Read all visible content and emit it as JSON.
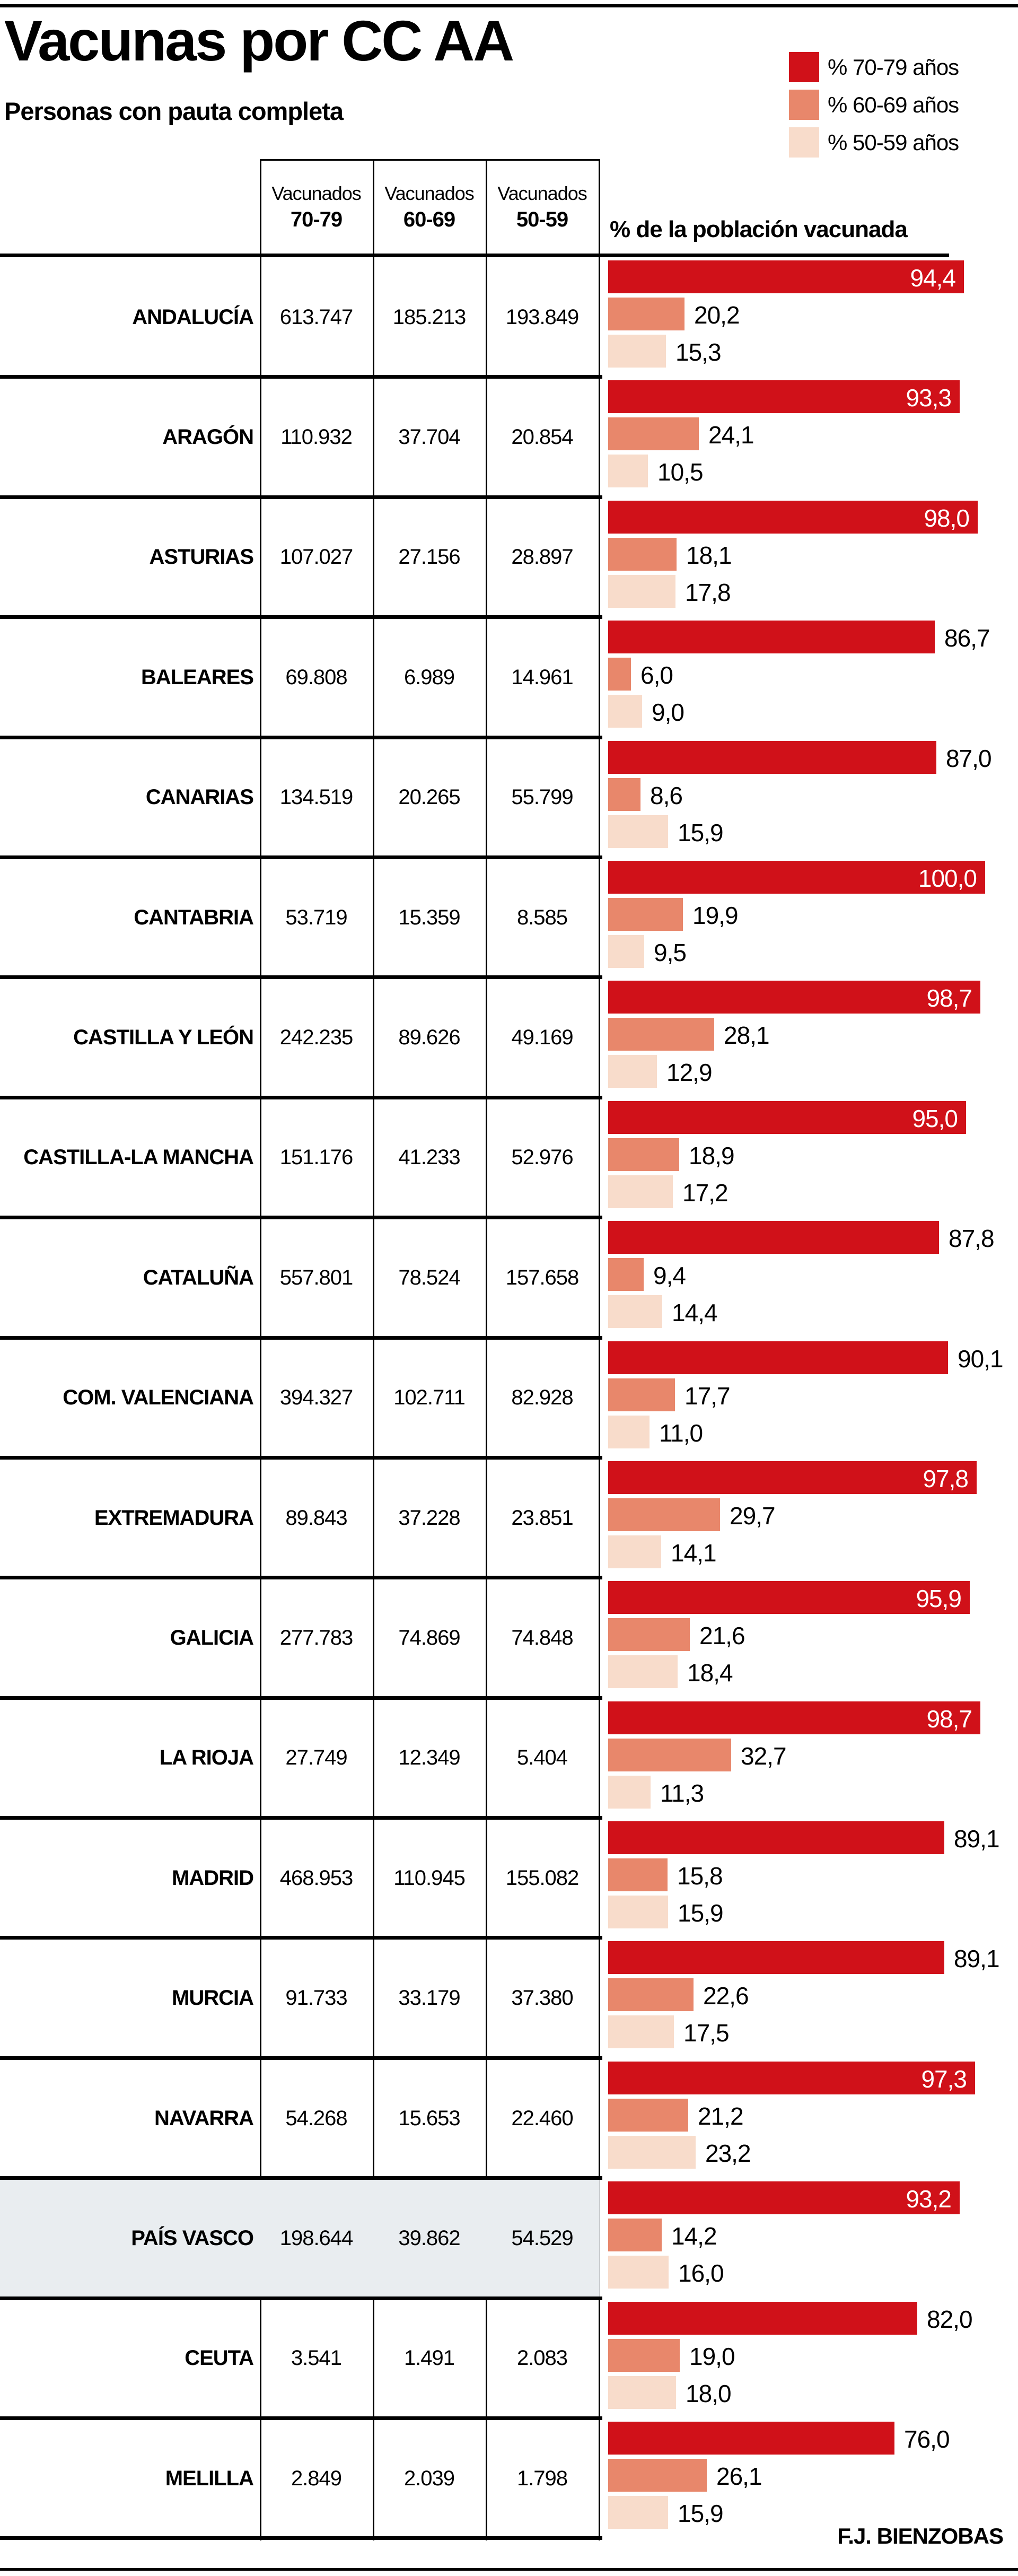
{
  "title": "Vacunas por CC AA",
  "subtitle": "Personas con pauta completa",
  "credit": "F.J. BIENZOBAS",
  "legend": [
    {
      "label": "% 70-79 años",
      "color": "#d01119"
    },
    {
      "label": "% 60-69 años",
      "color": "#e8876b"
    },
    {
      "label": "% 50-59 años",
      "color": "#f8dccb"
    }
  ],
  "table": {
    "col_headers": [
      {
        "line1": "Vacunados",
        "line2": "70-79"
      },
      {
        "line1": "Vacunados",
        "line2": "60-69"
      },
      {
        "line1": "Vacunados",
        "line2": "50-59"
      }
    ],
    "bars_header": "% de la población vacunada"
  },
  "highlight_row_color": "#e9edf0",
  "chart_data": {
    "type": "bar",
    "orientation": "horizontal",
    "title": "Vacunas por CC AA",
    "subtitle": "Personas con pauta completa",
    "unit": "% de la población vacunada",
    "xlim": [
      0,
      100
    ],
    "grid": false,
    "legend_position": "top-right",
    "series_names": [
      "% 70-79 años",
      "% 60-69 años",
      "% 50-59 años"
    ],
    "rows": [
      {
        "region": "ANDALUCÍA",
        "counts": [
          "613.747",
          "185.213",
          "193.849"
        ],
        "pct_labels": [
          "94,4",
          "20,2",
          "15,3"
        ],
        "pct_values": [
          94.4,
          20.2,
          15.3
        ],
        "highlight": false
      },
      {
        "region": "ARAGÓN",
        "counts": [
          "110.932",
          "37.704",
          "20.854"
        ],
        "pct_labels": [
          "93,3",
          "24,1",
          "10,5"
        ],
        "pct_values": [
          93.3,
          24.1,
          10.5
        ],
        "highlight": false
      },
      {
        "region": "ASTURIAS",
        "counts": [
          "107.027",
          "27.156",
          "28.897"
        ],
        "pct_labels": [
          "98,0",
          "18,1",
          "17,8"
        ],
        "pct_values": [
          98.0,
          18.1,
          17.8
        ],
        "highlight": false
      },
      {
        "region": "BALEARES",
        "counts": [
          "69.808",
          "6.989",
          "14.961"
        ],
        "pct_labels": [
          "86,7",
          "6,0",
          "9,0"
        ],
        "pct_values": [
          86.7,
          6.0,
          9.0
        ],
        "highlight": false
      },
      {
        "region": "CANARIAS",
        "counts": [
          "134.519",
          "20.265",
          "55.799"
        ],
        "pct_labels": [
          "87,0",
          "8,6",
          "15,9"
        ],
        "pct_values": [
          87.0,
          8.6,
          15.9
        ],
        "highlight": false
      },
      {
        "region": "CANTABRIA",
        "counts": [
          "53.719",
          "15.359",
          "8.585"
        ],
        "pct_labels": [
          "100,0",
          "19,9",
          "9,5"
        ],
        "pct_values": [
          100.0,
          19.9,
          9.5
        ],
        "highlight": false
      },
      {
        "region": "CASTILLA Y LEÓN",
        "counts": [
          "242.235",
          "89.626",
          "49.169"
        ],
        "pct_labels": [
          "98,7",
          "28,1",
          "12,9"
        ],
        "pct_values": [
          98.7,
          28.1,
          12.9
        ],
        "highlight": false
      },
      {
        "region": "CASTILLA-LA MANCHA",
        "counts": [
          "151.176",
          "41.233",
          "52.976"
        ],
        "pct_labels": [
          "95,0",
          "18,9",
          "17,2"
        ],
        "pct_values": [
          95.0,
          18.9,
          17.2
        ],
        "highlight": false
      },
      {
        "region": "CATALUÑA",
        "counts": [
          "557.801",
          "78.524",
          "157.658"
        ],
        "pct_labels": [
          "87,8",
          "9,4",
          "14,4"
        ],
        "pct_values": [
          87.8,
          9.4,
          14.4
        ],
        "highlight": false
      },
      {
        "region": "COM. VALENCIANA",
        "counts": [
          "394.327",
          "102.711",
          "82.928"
        ],
        "pct_labels": [
          "90,1",
          "17,7",
          "11,0"
        ],
        "pct_values": [
          90.1,
          17.7,
          11.0
        ],
        "highlight": false
      },
      {
        "region": "EXTREMADURA",
        "counts": [
          "89.843",
          "37.228",
          "23.851"
        ],
        "pct_labels": [
          "97,8",
          "29,7",
          "14,1"
        ],
        "pct_values": [
          97.8,
          29.7,
          14.1
        ],
        "highlight": false
      },
      {
        "region": "GALICIA",
        "counts": [
          "277.783",
          "74.869",
          "74.848"
        ],
        "pct_labels": [
          "95,9",
          "21,6",
          "18,4"
        ],
        "pct_values": [
          95.9,
          21.6,
          18.4
        ],
        "highlight": false
      },
      {
        "region": "LA RIOJA",
        "counts": [
          "27.749",
          "12.349",
          "5.404"
        ],
        "pct_labels": [
          "98,7",
          "32,7",
          "11,3"
        ],
        "pct_values": [
          98.7,
          32.7,
          11.3
        ],
        "highlight": false
      },
      {
        "region": "MADRID",
        "counts": [
          "468.953",
          "110.945",
          "155.082"
        ],
        "pct_labels": [
          "89,1",
          "15,8",
          "15,9"
        ],
        "pct_values": [
          89.1,
          15.8,
          15.9
        ],
        "highlight": false
      },
      {
        "region": "MURCIA",
        "counts": [
          "91.733",
          "33.179",
          "37.380"
        ],
        "pct_labels": [
          "89,1",
          "22,6",
          "17,5"
        ],
        "pct_values": [
          89.1,
          22.6,
          17.5
        ],
        "highlight": false
      },
      {
        "region": "NAVARRA",
        "counts": [
          "54.268",
          "15.653",
          "22.460"
        ],
        "pct_labels": [
          "97,3",
          "21,2",
          "23,2"
        ],
        "pct_values": [
          97.3,
          21.2,
          23.2
        ],
        "highlight": false
      },
      {
        "region": "PAÍS VASCO",
        "counts": [
          "198.644",
          "39.862",
          "54.529"
        ],
        "pct_labels": [
          "93,2",
          "14,2",
          "16,0"
        ],
        "pct_values": [
          93.2,
          14.2,
          16.0
        ],
        "highlight": true
      },
      {
        "region": "CEUTA",
        "counts": [
          "3.541",
          "1.491",
          "2.083"
        ],
        "pct_labels": [
          "82,0",
          "19,0",
          "18,0"
        ],
        "pct_values": [
          82.0,
          19.0,
          18.0
        ],
        "highlight": false
      },
      {
        "region": "MELILLA",
        "counts": [
          "2.849",
          "2.039",
          "1.798"
        ],
        "pct_labels": [
          "76,0",
          "26,1",
          "15,9"
        ],
        "pct_values": [
          76.0,
          26.1,
          15.9
        ],
        "highlight": false
      }
    ]
  }
}
